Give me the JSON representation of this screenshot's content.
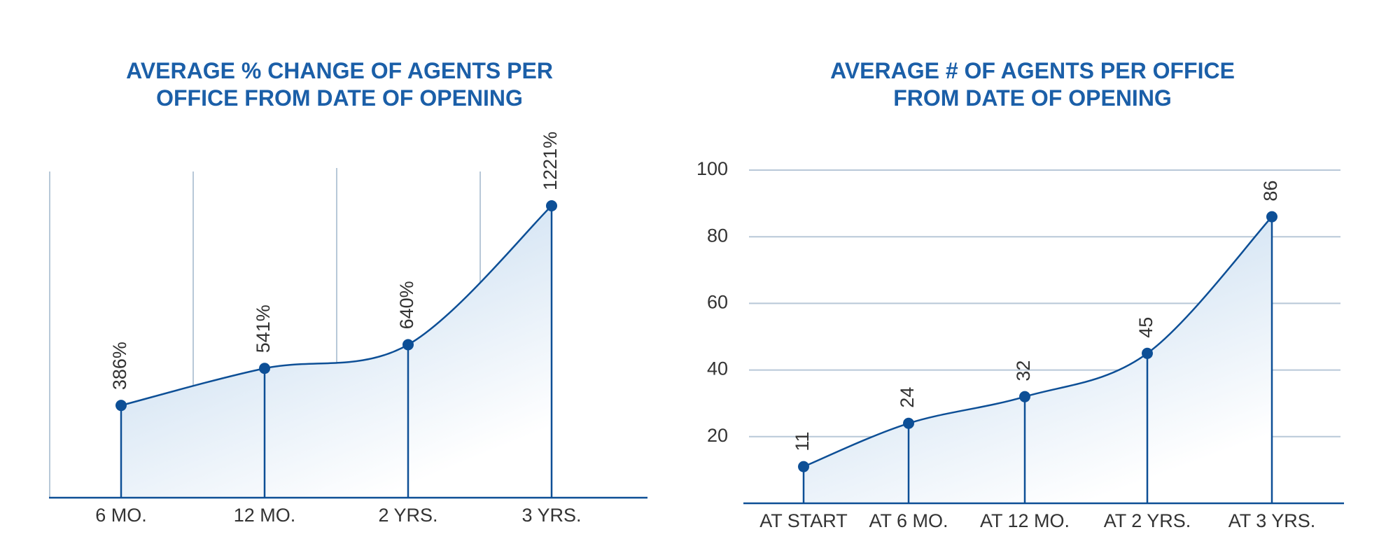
{
  "chart_data": [
    {
      "type": "line",
      "title": "AVERAGE % CHANGE OF AGENTS PER OFFICE FROM DATE OF OPENING",
      "categories": [
        "6 MO.",
        "12 MO.",
        "2 YRS.",
        "3 YRS."
      ],
      "values": [
        386,
        541,
        640,
        1221
      ],
      "value_labels": [
        "386%",
        "541%",
        "640%",
        "1221%"
      ],
      "color": "#0d4f96"
    },
    {
      "type": "line",
      "title": "AVERAGE # OF AGENTS PER OFFICE FROM DATE OF OPENING",
      "categories": [
        "AT START",
        "AT 6 MO.",
        "AT 12 MO.",
        "AT 2 YRS.",
        "AT 3 YRS."
      ],
      "values": [
        11,
        24,
        32,
        45,
        86
      ],
      "ylim": [
        0,
        100
      ],
      "yticks": [
        20,
        40,
        60,
        80,
        100
      ],
      "grid": true,
      "color": "#0d4f96"
    }
  ]
}
